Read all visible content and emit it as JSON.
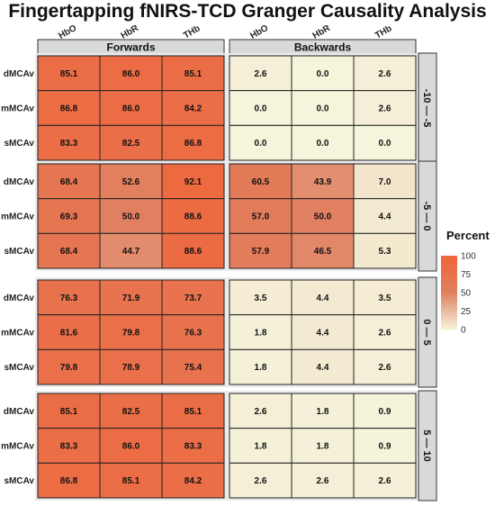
{
  "chart_data": {
    "type": "heatmap",
    "title": "Fingertapping fNIRS-TCD Granger Causality Analysis",
    "column_groups": [
      "Forwards",
      "Backwards"
    ],
    "columns": [
      "HbO",
      "HbR",
      "THb"
    ],
    "rows": [
      "dMCAv",
      "mMCAv",
      "sMCAv"
    ],
    "panels": [
      {
        "lag": "-10 — -5",
        "forwards": [
          [
            85.1,
            86.0,
            85.1
          ],
          [
            86.8,
            86.0,
            84.2
          ],
          [
            83.3,
            82.5,
            86.8
          ]
        ],
        "backwards": [
          [
            2.6,
            0.0,
            2.6
          ],
          [
            0.0,
            0.0,
            2.6
          ],
          [
            0.0,
            0.0,
            0.0
          ]
        ]
      },
      {
        "lag": "-5 — 0",
        "forwards": [
          [
            68.4,
            52.6,
            92.1
          ],
          [
            69.3,
            50.0,
            88.6
          ],
          [
            68.4,
            44.7,
            88.6
          ]
        ],
        "backwards": [
          [
            60.5,
            43.9,
            7.0
          ],
          [
            57.0,
            50.0,
            4.4
          ],
          [
            57.9,
            46.5,
            5.3
          ]
        ]
      },
      {
        "lag": "0 — 5",
        "forwards": [
          [
            76.3,
            71.9,
            73.7
          ],
          [
            81.6,
            79.8,
            76.3
          ],
          [
            79.8,
            78.9,
            75.4
          ]
        ],
        "backwards": [
          [
            3.5,
            4.4,
            3.5
          ],
          [
            1.8,
            4.4,
            2.6
          ],
          [
            1.8,
            4.4,
            2.6
          ]
        ]
      },
      {
        "lag": "5 — 10",
        "forwards": [
          [
            85.1,
            82.5,
            85.1
          ],
          [
            83.3,
            86.0,
            83.3
          ],
          [
            86.8,
            85.1,
            84.2
          ]
        ],
        "backwards": [
          [
            2.6,
            1.8,
            0.9
          ],
          [
            1.8,
            1.8,
            0.9
          ],
          [
            2.6,
            2.6,
            2.6
          ]
        ]
      }
    ],
    "legend": {
      "title": "Percent",
      "ticks": [
        100,
        75,
        50,
        25,
        0
      ],
      "range": [
        0,
        100
      ],
      "colors": [
        "#f5f5dc",
        "#e08060",
        "#f0653a"
      ]
    }
  }
}
